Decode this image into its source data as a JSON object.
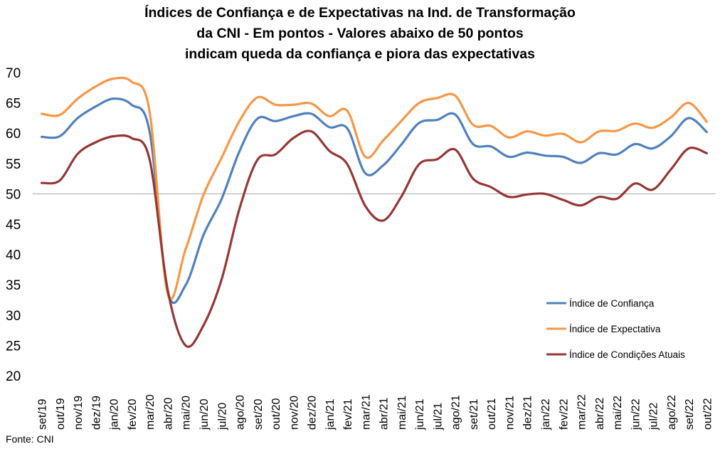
{
  "title_lines": [
    "Índices de Confiança e de Expectativas na Ind. de Transformação",
    "da CNI - Em pontos - Valores abaixo de 50 pontos",
    "indicam queda da confiança e piora das expectativas"
  ],
  "source": "Fonte: CNI",
  "colors": {
    "confianca": "#4F81BD",
    "expectativa": "#F79646",
    "condicoes": "#953735",
    "reference_line": "#A6A6A6"
  },
  "chart_data": {
    "type": "line",
    "title": "Índices de Confiança e de Expectativas na Ind. de Transformação da CNI - Em pontos - Valores abaixo de 50 pontos indicam queda da confiança e piora das expectativas",
    "xlabel": "",
    "ylabel": "",
    "ylim": [
      20,
      70
    ],
    "yticks": [
      20,
      25,
      30,
      35,
      40,
      45,
      50,
      55,
      60,
      65,
      70
    ],
    "reference_line": 50,
    "grid": false,
    "legend_position": "bottom-right",
    "categories": [
      "set/19",
      "out/19",
      "nov/19",
      "dez/19",
      "jan/20",
      "fev/20",
      "mar/20",
      "abr/20",
      "mai/20",
      "jun/20",
      "jul/20",
      "ago/20",
      "set/20",
      "out/20",
      "nov/20",
      "dez/20",
      "jan/21",
      "fev/21",
      "mar/21",
      "abr/21",
      "mai/21",
      "jun/21",
      "jul/21",
      "ago/21",
      "set/21",
      "out/21",
      "nov/21",
      "dez/21",
      "jan/22",
      "fev/22",
      "mar/22",
      "abr/22",
      "mai/22",
      "jun/22",
      "jul/22",
      "ago/22",
      "set/22",
      "out/22"
    ],
    "series": [
      {
        "name": "Índice de Confiança",
        "key": "confianca",
        "values": [
          59.4,
          59.5,
          62.5,
          64.4,
          65.7,
          64.7,
          60.3,
          34.0,
          34.9,
          43.2,
          49.1,
          57.0,
          62.4,
          62.0,
          62.8,
          63.2,
          61.0,
          60.8,
          53.4,
          54.7,
          58.1,
          61.7,
          62.2,
          63.1,
          58.2,
          57.8,
          56.1,
          56.8,
          56.3,
          56.1,
          55.1,
          56.7,
          56.5,
          58.2,
          57.5,
          59.5,
          62.5,
          60.2
        ]
      },
      {
        "name": "Índice de Expectativa",
        "key": "expectativa",
        "values": [
          63.2,
          63.0,
          65.7,
          67.7,
          69.0,
          68.5,
          63.6,
          33.6,
          40.8,
          49.8,
          55.9,
          62.0,
          65.9,
          64.7,
          64.7,
          64.9,
          62.8,
          63.7,
          56.1,
          58.8,
          62.0,
          65.0,
          65.8,
          66.2,
          61.4,
          61.2,
          59.3,
          60.3,
          59.6,
          59.9,
          58.5,
          60.3,
          60.4,
          61.6,
          60.9,
          62.6,
          65.0,
          61.9
        ]
      },
      {
        "name": "Índice de Condições Atuais",
        "key": "condicoes",
        "values": [
          51.8,
          52.2,
          56.6,
          58.5,
          59.5,
          59.2,
          55.7,
          34.3,
          25.0,
          28.3,
          35.8,
          47.5,
          55.6,
          56.5,
          59.2,
          60.3,
          57.1,
          54.9,
          48.0,
          45.6,
          49.5,
          54.9,
          55.7,
          57.3,
          52.5,
          51.1,
          49.5,
          49.9,
          50.0,
          49.0,
          48.1,
          49.5,
          49.2,
          51.7,
          50.7,
          54.0,
          57.5,
          56.7
        ]
      }
    ]
  }
}
